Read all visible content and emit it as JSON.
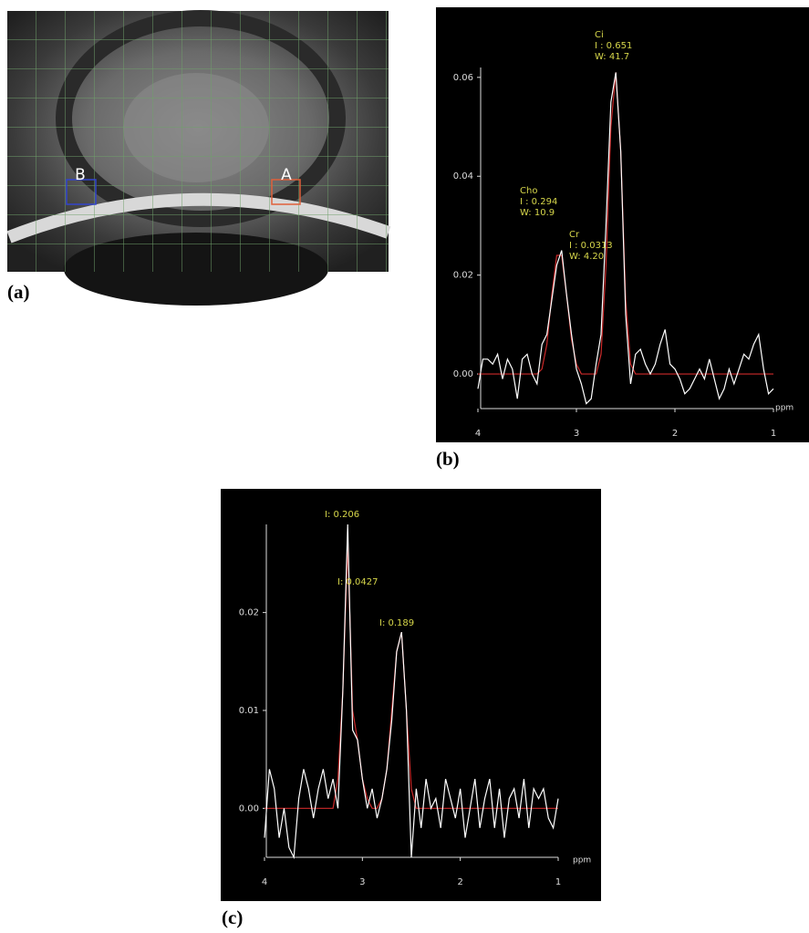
{
  "figure": {
    "panel_labels": [
      "(a)",
      "(b)",
      "(c)"
    ],
    "voxel_labels": [
      "B",
      "A"
    ]
  },
  "chart_data": [
    {
      "type": "line",
      "xlabel": "ppm",
      "x": [
        4,
        3.95,
        3.9,
        3.85,
        3.8,
        3.75,
        3.7,
        3.65,
        3.6,
        3.55,
        3.5,
        3.45,
        3.4,
        3.35,
        3.3,
        3.25,
        3.2,
        3.15,
        3.1,
        3.05,
        3,
        2.95,
        2.9,
        2.85,
        2.8,
        2.75,
        2.7,
        2.65,
        2.6,
        2.55,
        2.5,
        2.45,
        2.4,
        2.35,
        2.3,
        2.25,
        2.2,
        2.15,
        2.1,
        2.05,
        2,
        1.95,
        1.9,
        1.85,
        1.8,
        1.75,
        1.7,
        1.65,
        1.6,
        1.55,
        1.5,
        1.45,
        1.4,
        1.35,
        1.3,
        1.25,
        1.2,
        1.15,
        1.1,
        1.05,
        1
      ],
      "series": [
        {
          "color": "#ffffff",
          "values": [
            -0.003,
            0.003,
            0.003,
            0.002,
            0.004,
            -0.001,
            0.003,
            0.001,
            -0.005,
            0.003,
            0.004,
            0,
            -0.002,
            0.006,
            0.008,
            0.015,
            0.022,
            0.025,
            0.016,
            0.008,
            0.001,
            -0.002,
            -0.006,
            -0.005,
            0.002,
            0.008,
            0.03,
            0.055,
            0.061,
            0.045,
            0.012,
            -0.002,
            0.004,
            0.005,
            0.002,
            0,
            0.002,
            0.006,
            0.009,
            0.002,
            0.001,
            -0.001,
            -0.004,
            -0.003,
            -0.001,
            0.001,
            -0.001,
            0.003,
            -0.001,
            -0.005,
            -0.003,
            0.001,
            -0.002,
            0.001,
            0.004,
            0.003,
            0.006,
            0.008,
            0.001,
            -0.004,
            -0.003
          ]
        },
        {
          "color": "#cc2a2a",
          "values": [
            0,
            0,
            0,
            0,
            0,
            0,
            0,
            0,
            0,
            0,
            0,
            0,
            0,
            0.001,
            0.006,
            0.016,
            0.024,
            0.024,
            0.016,
            0.007,
            0.002,
            0,
            0,
            0,
            0,
            0.004,
            0.022,
            0.05,
            0.061,
            0.045,
            0.015,
            0.002,
            0,
            0,
            0,
            0,
            0,
            0,
            0,
            0,
            0,
            0,
            0,
            0,
            0,
            0,
            0,
            0,
            0,
            0,
            0,
            0,
            0,
            0,
            0,
            0,
            0,
            0,
            0,
            0,
            0
          ]
        }
      ],
      "xlim": [
        4,
        1
      ],
      "xticks": [
        4,
        3,
        2,
        1
      ],
      "ylim": [
        -0.007,
        0.062
      ],
      "yticks": [
        {
          "value": 0,
          "label": "0.00"
        },
        0.02,
        0.04,
        0.06
      ],
      "annotations": [
        [
          "Cho",
          "I : 0.294",
          "W: 10.9"
        ],
        [
          "Cr",
          "I : 0.0313",
          "W: 4.20"
        ],
        [
          "Ci",
          "I : 0.651",
          "W: 41.7"
        ]
      ]
    },
    {
      "type": "line",
      "xlabel": "ppm",
      "x": [
        4,
        3.95,
        3.9,
        3.85,
        3.8,
        3.75,
        3.7,
        3.65,
        3.6,
        3.55,
        3.5,
        3.45,
        3.4,
        3.35,
        3.3,
        3.25,
        3.2,
        3.15,
        3.1,
        3.05,
        3,
        2.95,
        2.9,
        2.85,
        2.8,
        2.75,
        2.7,
        2.65,
        2.6,
        2.55,
        2.5,
        2.45,
        2.4,
        2.35,
        2.3,
        2.25,
        2.2,
        2.15,
        2.1,
        2.05,
        2,
        1.95,
        1.9,
        1.85,
        1.8,
        1.75,
        1.7,
        1.65,
        1.6,
        1.55,
        1.5,
        1.45,
        1.4,
        1.35,
        1.3,
        1.25,
        1.2,
        1.15,
        1.1,
        1.05,
        1
      ],
      "series": [
        {
          "color": "#ffffff",
          "values": [
            -0.003,
            0.004,
            0.002,
            -0.003,
            0,
            -0.004,
            -0.005,
            0.001,
            0.004,
            0.002,
            -0.001,
            0.002,
            0.004,
            0.001,
            0.003,
            0,
            0.012,
            0.029,
            0.008,
            0.007,
            0.003,
            0,
            0.002,
            -0.001,
            0.001,
            0.004,
            0.009,
            0.016,
            0.018,
            0.01,
            -0.005,
            0.002,
            -0.002,
            0.003,
            0,
            0.001,
            -0.002,
            0.003,
            0.001,
            -0.001,
            0.002,
            -0.003,
            0,
            0.003,
            -0.002,
            0.001,
            0.003,
            -0.002,
            0.002,
            -0.003,
            0.001,
            0.002,
            -0.001,
            0.003,
            -0.002,
            0.002,
            0.001,
            0.002,
            -0.001,
            -0.002,
            0.001
          ]
        },
        {
          "color": "#cc2a2a",
          "values": [
            0,
            0,
            0,
            0,
            0,
            0,
            0,
            0,
            0,
            0,
            0,
            0,
            0,
            0,
            0,
            0.003,
            0.012,
            0.027,
            0.01,
            0.007,
            0.003,
            0.001,
            0,
            0,
            0.001,
            0.004,
            0.01,
            0.016,
            0.018,
            0.01,
            0.002,
            0,
            0,
            0,
            0,
            0,
            0,
            0,
            0,
            0,
            0,
            0,
            0,
            0,
            0,
            0,
            0,
            0,
            0,
            0,
            0,
            0,
            0,
            0,
            0,
            0,
            0,
            0,
            0,
            0,
            0
          ]
        }
      ],
      "xlim": [
        4,
        1
      ],
      "xticks": [
        4,
        3,
        2,
        1
      ],
      "ylim": [
        -0.005,
        0.029
      ],
      "yticks": [
        {
          "value": 0,
          "label": "0.00"
        },
        0.01,
        0.02
      ],
      "annotations": [
        [
          "I: 0.206"
        ],
        [
          "I: 0.0427"
        ],
        [
          "I: 0.189"
        ]
      ]
    }
  ]
}
